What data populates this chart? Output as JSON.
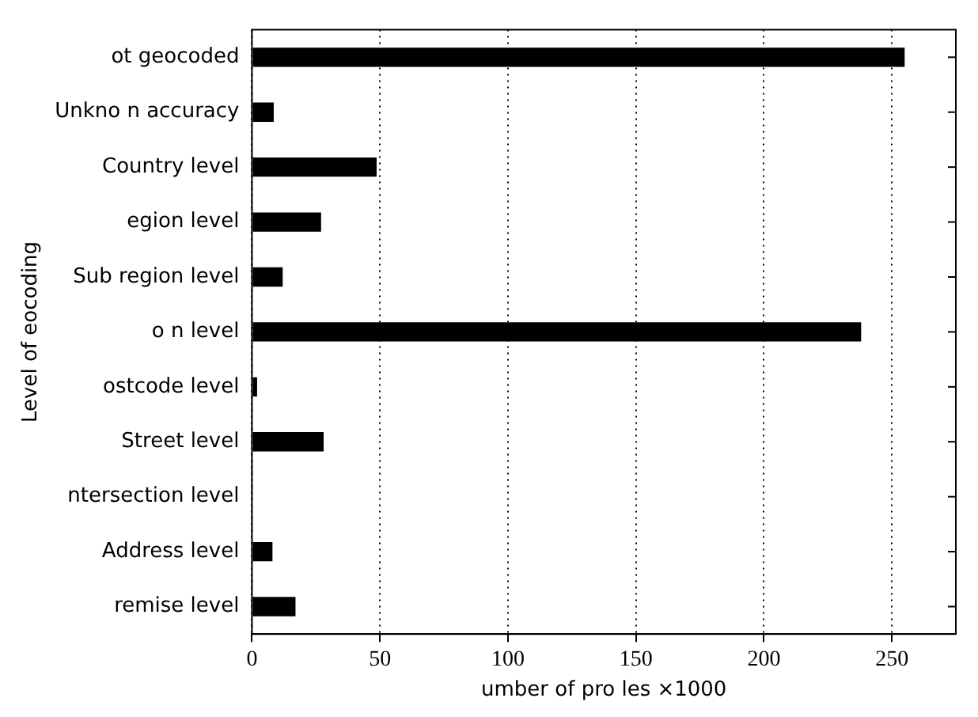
{
  "chart_data": {
    "type": "bar",
    "orientation": "horizontal",
    "xlabel": "umber of pro les ×1000",
    "ylabel": "Level of eocoding",
    "categories": [
      "ot geocoded",
      "Unkno n accuracy",
      "Country level",
      "egion level",
      "Sub region level",
      "o n level",
      "ostcode level",
      "Street level",
      "ntersection level",
      "Address level",
      "remise level"
    ],
    "values": [
      255,
      8.5,
      48.7,
      27,
      12,
      238,
      2,
      28,
      null,
      8,
      17
    ],
    "color": "#000000",
    "xlim": [
      0,
      275
    ],
    "xticks": [
      0,
      50,
      100,
      150,
      200,
      250
    ],
    "grid": "x",
    "legend": false
  }
}
